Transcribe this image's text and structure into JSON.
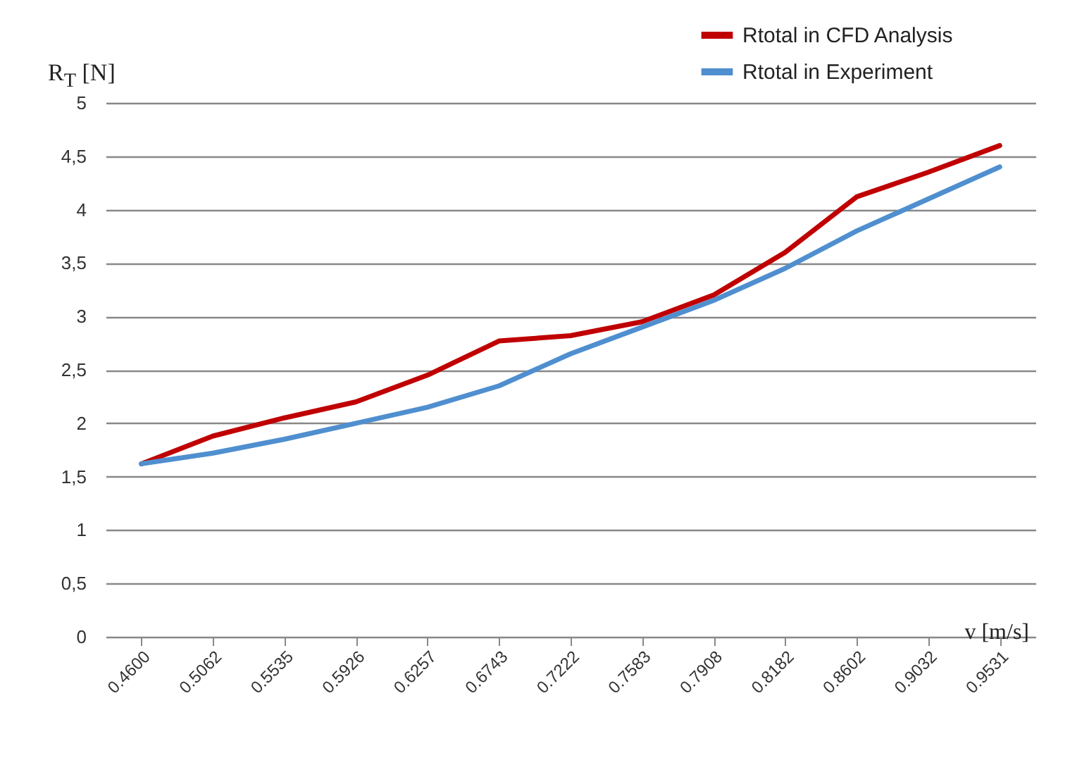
{
  "chart_data": {
    "type": "line",
    "xlabel": "v [m/s]",
    "ylabel": "R$_{T}$ [N]",
    "categories": [
      "0.4600",
      "0.5062",
      "0.5535",
      "0.5926",
      "0.6257",
      "0.6743",
      "0.7222",
      "0.7583",
      "0.7908",
      "0.8182",
      "0.8602",
      "0.9032",
      "0.9531"
    ],
    "series": [
      {
        "name": "Rtotal in CFD Analysis",
        "color": "#c00000",
        "values": [
          1.62,
          1.88,
          2.05,
          2.2,
          2.45,
          2.77,
          2.82,
          2.95,
          3.2,
          3.6,
          4.12,
          4.35,
          4.6
        ]
      },
      {
        "name": "Rtotal in Experiment",
        "color": "#4f8fcf",
        "values": [
          1.62,
          1.72,
          1.85,
          2.0,
          2.15,
          2.35,
          2.65,
          2.9,
          3.15,
          3.45,
          3.8,
          4.1,
          4.4
        ]
      }
    ],
    "ylim": [
      0,
      5
    ],
    "yticks": [
      0,
      {
        "value": 0.5,
        "label": "0,5"
      },
      1,
      {
        "value": 1.5,
        "label": "1,5"
      },
      2,
      {
        "value": 2.5,
        "label": "2,5"
      },
      3,
      {
        "value": 3.5,
        "label": "3,5"
      },
      4,
      {
        "value": 4.5,
        "label": "4,5"
      },
      5
    ],
    "grid": "y",
    "legend": "top right",
    "marker": "none",
    "line_style": "solid"
  }
}
